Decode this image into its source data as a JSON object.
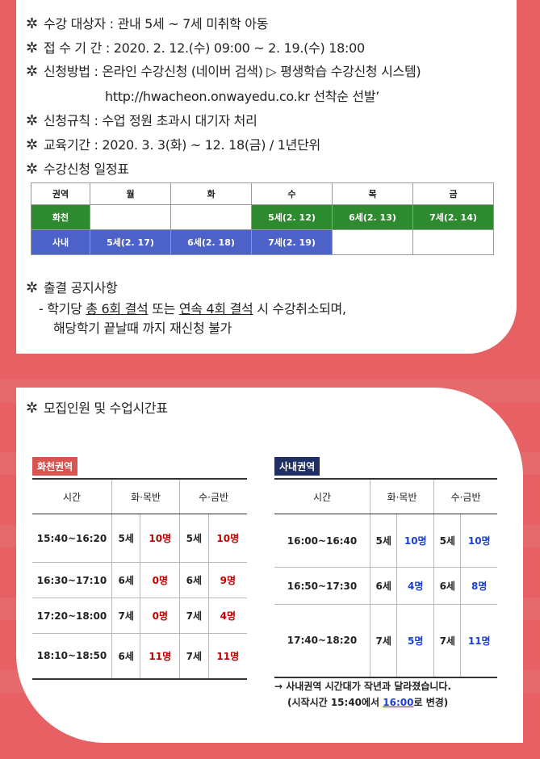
{
  "top": {
    "items": [
      {
        "text": "수강 대상자 : 관내 5세 ~ 7세 미취학 아동"
      },
      {
        "text": "접 수 기 간 : 2020. 2. 12.(수) 09:00 ~ 2. 19.(수) 18:00"
      },
      {
        "text": "신청방법 : 온라인 수강신청 (네이버  검색) ▷ 평생학습 수강신청 시스템)"
      },
      {
        "text": "신청규칙 : 수업 정원 초과시 대기자 처리"
      },
      {
        "text": "교육기간 : 2020. 3. 3(화) ~ 12. 18(금)  / 1년단위"
      },
      {
        "text": "수강신청 일정표"
      }
    ],
    "url_line": "http://hwacheon.onwayedu.co.kr 선착순 선발’",
    "star": "✲",
    "schedule": {
      "headers": [
        "권역",
        "월",
        "화",
        "수",
        "목",
        "금"
      ],
      "rows": [
        {
          "region": "화천",
          "cells": [
            "",
            "",
            "5세(2. 12)",
            "6세(2. 13)",
            "7세(2. 14)"
          ]
        },
        {
          "region": "사내",
          "cells": [
            "5세(2. 17)",
            "6세(2. 18)",
            "7세(2. 19)",
            "",
            ""
          ]
        }
      ]
    },
    "attendance": {
      "title": "출결 공지사항",
      "line1_pre": "- 학기당 ",
      "line1_u1": "총 6회 결석",
      "line1_mid": " 또는 ",
      "line1_u2": "연속 4회 결석",
      "line1_post": " 시 수강취소되며,",
      "line2": "해당학기 끝날때 까지 재신청 불가"
    }
  },
  "bottom": {
    "title": "모집인원 및 수업시간표",
    "left": {
      "tag": "화천권역",
      "headers": [
        "시간",
        "화·목반",
        "수·금반"
      ],
      "rows": [
        {
          "time": "15:40~16:20",
          "a_age": "5세",
          "a_cnt": "10명",
          "b_age": "5세",
          "b_cnt": "10명"
        },
        {
          "time": "16:30~17:10",
          "a_age": "6세",
          "a_cnt": "0명",
          "b_age": "6세",
          "b_cnt": "9명"
        },
        {
          "time": "17:20~18:00",
          "a_age": "7세",
          "a_cnt": "0명",
          "b_age": "7세",
          "b_cnt": "4명"
        },
        {
          "time": "18:10~18:50",
          "a_age": "6세",
          "a_cnt": "11명",
          "b_age": "7세",
          "b_cnt": "11명"
        }
      ]
    },
    "right": {
      "tag": "사내권역",
      "headers": [
        "시간",
        "화·목반",
        "수·금반"
      ],
      "rows": [
        {
          "time": "16:00~16:40",
          "a_age": "5세",
          "a_cnt": "10명",
          "b_age": "5세",
          "b_cnt": "10명"
        },
        {
          "time": "16:50~17:30",
          "a_age": "6세",
          "a_cnt": "4명",
          "b_age": "6세",
          "b_cnt": "8명"
        },
        {
          "time": "17:40~18:20",
          "a_age": "7세",
          "a_cnt": "5명",
          "b_age": "7세",
          "b_cnt": "11명"
        }
      ]
    },
    "note_line1": "→ 사내권역 시간대가 작년과 달라졌습니다.",
    "note_line2_pre": "(시작시간 15:40에서 ",
    "note_line2_hl": "16:00",
    "note_line2_post": "로 변경)"
  }
}
